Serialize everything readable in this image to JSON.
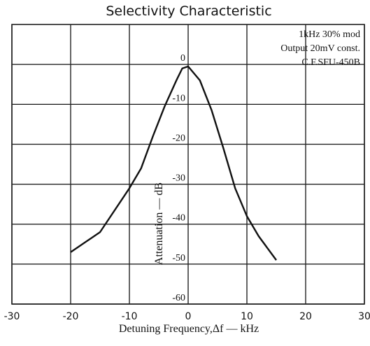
{
  "chart_data": {
    "type": "line",
    "title": "Selectivity Characteristic",
    "annotations": [
      "1kHz 30% mod",
      "Output 20mV const.",
      "C.F.SFU-450B"
    ],
    "xlabel": "Detuning Frequency,Δf — kHz",
    "ylabel": "Attenuation — dB",
    "x": [
      -20,
      -15,
      -10,
      -8,
      -6,
      -4,
      -2,
      -1,
      0,
      2,
      4,
      6,
      8,
      10,
      12,
      15
    ],
    "series": [
      {
        "name": "Attenuation",
        "color": "#111111",
        "values": [
          -47,
          -42,
          -31,
          -26,
          -18,
          -10.5,
          -4,
          -1,
          -0.5,
          -4,
          -11.5,
          -21,
          -31,
          -38,
          -43,
          -49
        ]
      }
    ],
    "xlim": [
      -30,
      30
    ],
    "xticks": [
      -30,
      -20,
      -10,
      0,
      10,
      20,
      30
    ],
    "ylim": [
      -60,
      10
    ],
    "yticks": [
      -60,
      -50,
      -40,
      -30,
      -20,
      -10,
      0
    ],
    "grid": true
  }
}
